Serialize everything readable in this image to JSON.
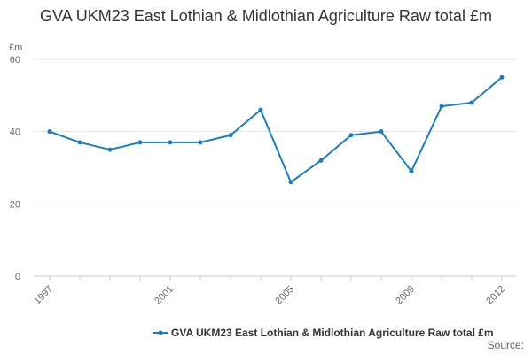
{
  "chart_data": {
    "type": "line",
    "title": "GVA UKM23 East Lothian & Midlothian Agriculture Raw total £m",
    "ylabel": "£m",
    "xlabel": "",
    "x": [
      1997,
      1998,
      1999,
      2000,
      2001,
      2002,
      2003,
      2004,
      2005,
      2006,
      2007,
      2008,
      2009,
      2010,
      2011,
      2012
    ],
    "x_tick_labels": [
      "1997",
      "2001",
      "2005",
      "2009",
      "2012"
    ],
    "y_tick_labels": [
      "0",
      "20",
      "40",
      "60"
    ],
    "ylim": [
      0,
      60
    ],
    "grid": true,
    "legend_position": "bottom",
    "series": [
      {
        "name": "GVA UKM23 East Lothian & Midlothian Agriculture Raw total £m",
        "color": "#1a7dbf",
        "values": [
          40,
          37,
          35,
          37,
          37,
          37,
          39,
          46,
          26,
          32,
          39,
          40,
          29,
          47,
          48,
          55
        ]
      }
    ],
    "source_label": "Source:"
  }
}
